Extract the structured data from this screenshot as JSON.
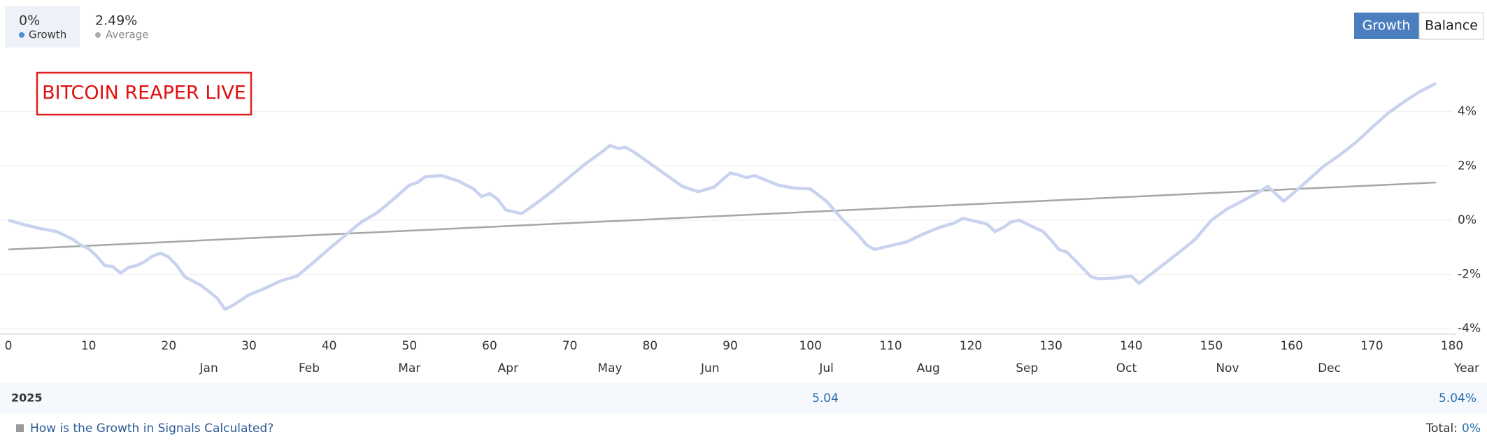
{
  "header": {
    "stats": [
      "0%",
      "2.49%"
    ],
    "buttons": [
      "Growth",
      "Balance"
    ]
  },
  "chart_data": {
    "type": "line",
    "annotation": "BITCOIN REAPER LIVE",
    "x": [
      0,
      2,
      4,
      6,
      8,
      9,
      10,
      11,
      12,
      13,
      14,
      15,
      16,
      17,
      18,
      19,
      20,
      21,
      22,
      24,
      26,
      27,
      28,
      30,
      32,
      34,
      36,
      38,
      40,
      42,
      44,
      46,
      48,
      50,
      51,
      52,
      54,
      56,
      58,
      59,
      60,
      61,
      62,
      64,
      66,
      68,
      70,
      72,
      74,
      75,
      76,
      77,
      78,
      80,
      82,
      84,
      86,
      88,
      90,
      91,
      92,
      93,
      94,
      96,
      98,
      100,
      102,
      104,
      106,
      107,
      108,
      110,
      112,
      114,
      116,
      118,
      119,
      120,
      122,
      123,
      124,
      125,
      126,
      127,
      128,
      129,
      130,
      131,
      132,
      134,
      135,
      136,
      138,
      140,
      141,
      142,
      144,
      146,
      148,
      150,
      152,
      154,
      156,
      157,
      158,
      159,
      160,
      162,
      164,
      166,
      168,
      170,
      172,
      174,
      176,
      178
    ],
    "series": [
      {
        "name": "Growth",
        "color": "#c9d3ef",
        "values": [
          0,
          -0.17,
          -0.31,
          -0.42,
          -0.7,
          -0.91,
          -1.05,
          -1.32,
          -1.67,
          -1.71,
          -1.95,
          -1.74,
          -1.67,
          -1.53,
          -1.32,
          -1.22,
          -1.36,
          -1.67,
          -2.09,
          -2.4,
          -2.86,
          -3.28,
          -3.14,
          -2.75,
          -2.51,
          -2.23,
          -2.06,
          -1.57,
          -1.05,
          -0.56,
          -0.07,
          0.28,
          0.77,
          1.29,
          1.39,
          1.6,
          1.64,
          1.46,
          1.15,
          0.87,
          0.98,
          0.77,
          0.38,
          0.24,
          0.66,
          1.11,
          1.6,
          2.09,
          2.51,
          2.75,
          2.65,
          2.68,
          2.51,
          2.09,
          1.67,
          1.25,
          1.05,
          1.22,
          1.74,
          1.67,
          1.57,
          1.64,
          1.53,
          1.29,
          1.18,
          1.15,
          0.7,
          0.03,
          -0.56,
          -0.91,
          -1.08,
          -0.94,
          -0.8,
          -0.52,
          -0.28,
          -0.1,
          0.07,
          0,
          -0.14,
          -0.42,
          -0.28,
          -0.07,
          0,
          -0.14,
          -0.28,
          -0.42,
          -0.73,
          -1.08,
          -1.18,
          -1.78,
          -2.09,
          -2.16,
          -2.13,
          -2.06,
          -2.33,
          -2.09,
          -1.64,
          -1.18,
          -0.7,
          0,
          0.42,
          0.73,
          1.05,
          1.25,
          0.98,
          0.7,
          0.94,
          1.46,
          1.99,
          2.4,
          2.86,
          3.41,
          3.94,
          4.36,
          4.74,
          5.04
        ]
      }
    ],
    "trend": {
      "name": "Average",
      "color": "#a6a6a6",
      "x": [
        0,
        178
      ],
      "values": [
        -1.08,
        1.39
      ]
    },
    "xlim": [
      0,
      180
    ],
    "ylim": [
      -4.2,
      6
    ],
    "xticks": [
      0,
      10,
      20,
      30,
      40,
      50,
      60,
      70,
      80,
      90,
      100,
      110,
      120,
      130,
      140,
      150,
      160,
      170,
      180
    ],
    "yticks": [
      {
        "value": -4,
        "label": "-4%"
      },
      {
        "value": -2,
        "label": "-2%"
      },
      {
        "value": 0,
        "label": "0%"
      },
      {
        "value": 2,
        "label": "2%"
      },
      {
        "value": 4,
        "label": "4%"
      }
    ],
    "month_ticks": [
      {
        "value": 25,
        "label": "Jan"
      },
      {
        "value": 37.5,
        "label": "Feb"
      },
      {
        "value": 50,
        "label": "Mar"
      },
      {
        "value": 62.3,
        "label": "Apr"
      },
      {
        "value": 75,
        "label": "May"
      },
      {
        "value": 87.5,
        "label": "Jun"
      },
      {
        "value": 102,
        "label": "Jul"
      },
      {
        "value": 114.7,
        "label": "Aug"
      },
      {
        "value": 127,
        "label": "Sep"
      },
      {
        "value": 139.4,
        "label": "Oct"
      },
      {
        "value": 152,
        "label": "Nov"
      },
      {
        "value": 164.7,
        "label": "Dec"
      }
    ],
    "month_axis_label": "Year",
    "grid": true
  },
  "footer": {
    "year": "2025",
    "mid_value": "5.04",
    "total_value": "5.04%",
    "link": "How is the Growth in Signals Calculated?",
    "total_label": "Total:",
    "total": "0%"
  }
}
